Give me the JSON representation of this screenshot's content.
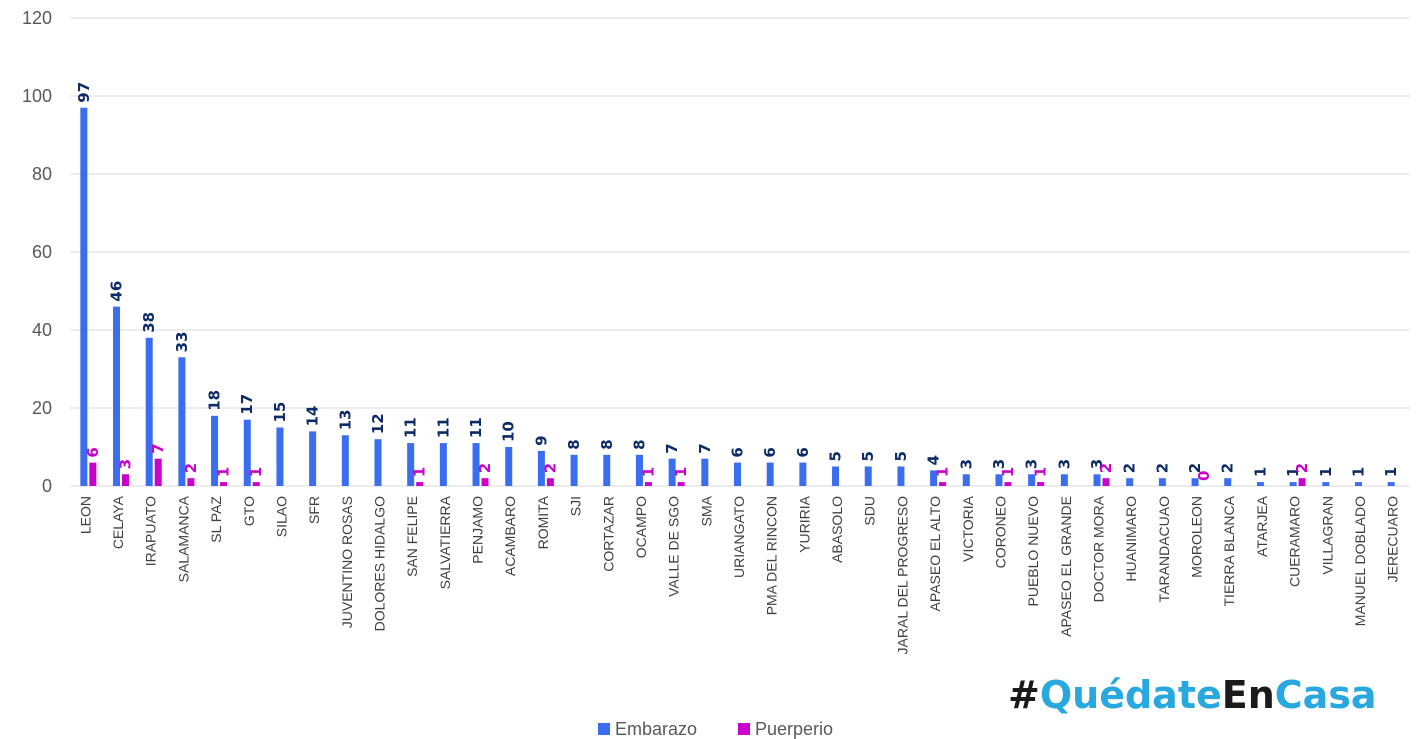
{
  "colors": {
    "embarazo": "#3a6df0",
    "puerperio": "#cc00cc",
    "grid": "#d9d9d9",
    "label_embarazo": "#0d2b66",
    "watermark_dark": "#1a1a1a",
    "watermark_accent": "#29a8e0"
  },
  "watermark": {
    "hash": "#",
    "word1": "Quédate",
    "word2": "En",
    "word3": "Casa"
  },
  "chart_data": {
    "type": "bar",
    "title": "",
    "xlabel": "",
    "ylabel": "",
    "ylim": [
      0,
      120
    ],
    "yticks": [
      0,
      20,
      40,
      60,
      80,
      100,
      120
    ],
    "grid": true,
    "legend_position": "bottom",
    "categories": [
      "LEON",
      "CELAYA",
      "IRAPUATO",
      "SALAMANCA",
      "SL PAZ",
      "GTO",
      "SILAO",
      "SFR",
      "JUVENTINO ROSAS",
      "DOLORES HIDALGO",
      "SAN FELIPE",
      "SALVATIERRA",
      "PENJAMO",
      "ACAMBARO",
      "ROMITA",
      "SJI",
      "CORTAZAR",
      "OCAMPO",
      "VALLE DE SGO",
      "SMA",
      "URIANGATO",
      "PMA DEL RINCON",
      "YURIRIA",
      "ABASOLO",
      "SDU",
      "JARAL DEL PROGRESO",
      "APASEO EL ALTO",
      "VICTORIA",
      "CORONEO",
      "PUEBLO NUEVO",
      "APASEO EL GRANDE",
      "DOCTOR MORA",
      "HUANIMARO",
      "TARANDACUAO",
      "MOROLEON",
      "TIERRA BLANCA",
      "ATARJEA",
      "CUERAMARO",
      "VILLAGRAN",
      "MANUEL DOBLADO",
      "JERECUARO"
    ],
    "series": [
      {
        "name": "Embarazo",
        "values": [
          97,
          46,
          38,
          33,
          18,
          17,
          15,
          14,
          13,
          12,
          11,
          11,
          11,
          10,
          9,
          8,
          8,
          8,
          7,
          7,
          6,
          6,
          6,
          5,
          5,
          5,
          4,
          3,
          3,
          3,
          3,
          3,
          2,
          2,
          2,
          2,
          1,
          1,
          1,
          1,
          1
        ]
      },
      {
        "name": "Puerperio",
        "values": [
          6,
          3,
          7,
          2,
          1,
          1,
          null,
          null,
          null,
          null,
          1,
          null,
          2,
          null,
          2,
          null,
          null,
          1,
          1,
          null,
          null,
          null,
          null,
          null,
          null,
          null,
          1,
          null,
          1,
          1,
          null,
          2,
          null,
          null,
          0,
          null,
          null,
          2,
          null,
          null,
          null
        ]
      }
    ]
  }
}
